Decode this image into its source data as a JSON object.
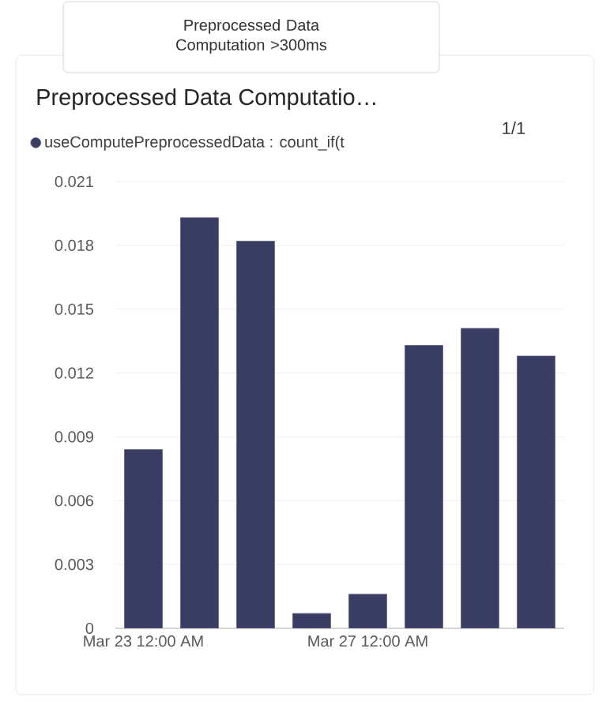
{
  "chart_data": {
    "type": "bar",
    "title": "Preprocessed Data Computatio…",
    "categories": [
      "Mar 23 12:00 AM",
      null,
      null,
      null,
      "Mar 27 12:00 AM",
      null,
      null,
      null
    ],
    "series": [
      {
        "name": "useComputePreprocessedData : count_if(t",
        "color": "#3a3d63",
        "values": [
          0.0084,
          0.0193,
          0.0182,
          0.0007,
          0.0016,
          0.0133,
          0.0141,
          0.0128
        ]
      }
    ],
    "ylim": [
      0,
      0.021
    ],
    "yticks": [
      0,
      0.003,
      0.006,
      0.009,
      0.012,
      0.015,
      0.018,
      0.021
    ],
    "grid": "y",
    "legend": "top left",
    "annotations": [
      "Preprocessed Data Computation >300ms",
      "1/1"
    ]
  }
}
